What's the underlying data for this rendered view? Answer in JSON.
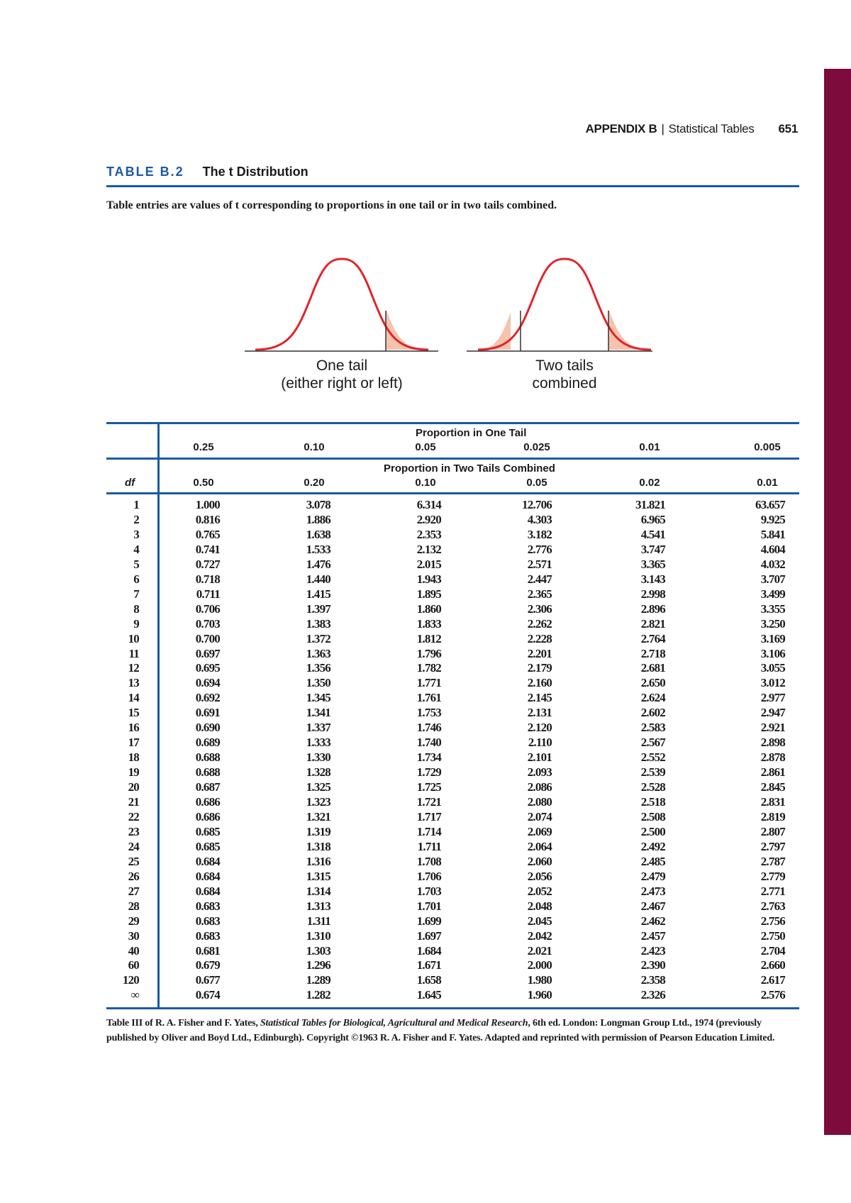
{
  "header": {
    "appendix": "APPENDIX B",
    "section": "Statistical Tables",
    "page_number": "651"
  },
  "table": {
    "number": "TABLE B.2",
    "title": "The t Distribution",
    "caption": "Table entries are values of t corresponding to proportions in one tail or in two tails combined.",
    "figure_labels": {
      "one_tail_line1": "One tail",
      "one_tail_line2": "(either right or left)",
      "two_tails_line1": "Two tails",
      "two_tails_line2": "combined"
    },
    "one_tail_heading": "Proportion in One Tail",
    "two_tail_heading": "Proportion in Two Tails Combined",
    "df_label": "df",
    "one_tail": [
      "0.25",
      "0.10",
      "0.05",
      "0.025",
      "0.01",
      "0.005"
    ],
    "two_tails": [
      "0.50",
      "0.20",
      "0.10",
      "0.05",
      "0.02",
      "0.01"
    ],
    "rows": [
      [
        "1",
        "1.000",
        "3.078",
        "6.314",
        "12.706",
        "31.821",
        "63.657"
      ],
      [
        "2",
        "0.816",
        "1.886",
        "2.920",
        "4.303",
        "6.965",
        "9.925"
      ],
      [
        "3",
        "0.765",
        "1.638",
        "2.353",
        "3.182",
        "4.541",
        "5.841"
      ],
      [
        "4",
        "0.741",
        "1.533",
        "2.132",
        "2.776",
        "3.747",
        "4.604"
      ],
      [
        "5",
        "0.727",
        "1.476",
        "2.015",
        "2.571",
        "3.365",
        "4.032"
      ],
      [
        "6",
        "0.718",
        "1.440",
        "1.943",
        "2.447",
        "3.143",
        "3.707"
      ],
      [
        "7",
        "0.711",
        "1.415",
        "1.895",
        "2.365",
        "2.998",
        "3.499"
      ],
      [
        "8",
        "0.706",
        "1.397",
        "1.860",
        "2.306",
        "2.896",
        "3.355"
      ],
      [
        "9",
        "0.703",
        "1.383",
        "1.833",
        "2.262",
        "2.821",
        "3.250"
      ],
      [
        "10",
        "0.700",
        "1.372",
        "1.812",
        "2.228",
        "2.764",
        "3.169"
      ],
      [
        "11",
        "0.697",
        "1.363",
        "1.796",
        "2.201",
        "2.718",
        "3.106"
      ],
      [
        "12",
        "0.695",
        "1.356",
        "1.782",
        "2.179",
        "2.681",
        "3.055"
      ],
      [
        "13",
        "0.694",
        "1.350",
        "1.771",
        "2.160",
        "2.650",
        "3.012"
      ],
      [
        "14",
        "0.692",
        "1.345",
        "1.761",
        "2.145",
        "2.624",
        "2.977"
      ],
      [
        "15",
        "0.691",
        "1.341",
        "1.753",
        "2.131",
        "2.602",
        "2.947"
      ],
      [
        "16",
        "0.690",
        "1.337",
        "1.746",
        "2.120",
        "2.583",
        "2.921"
      ],
      [
        "17",
        "0.689",
        "1.333",
        "1.740",
        "2.110",
        "2.567",
        "2.898"
      ],
      [
        "18",
        "0.688",
        "1.330",
        "1.734",
        "2.101",
        "2.552",
        "2.878"
      ],
      [
        "19",
        "0.688",
        "1.328",
        "1.729",
        "2.093",
        "2.539",
        "2.861"
      ],
      [
        "20",
        "0.687",
        "1.325",
        "1.725",
        "2.086",
        "2.528",
        "2.845"
      ],
      [
        "21",
        "0.686",
        "1.323",
        "1.721",
        "2.080",
        "2.518",
        "2.831"
      ],
      [
        "22",
        "0.686",
        "1.321",
        "1.717",
        "2.074",
        "2.508",
        "2.819"
      ],
      [
        "23",
        "0.685",
        "1.319",
        "1.714",
        "2.069",
        "2.500",
        "2.807"
      ],
      [
        "24",
        "0.685",
        "1.318",
        "1.711",
        "2.064",
        "2.492",
        "2.797"
      ],
      [
        "25",
        "0.684",
        "1.316",
        "1.708",
        "2.060",
        "2.485",
        "2.787"
      ],
      [
        "26",
        "0.684",
        "1.315",
        "1.706",
        "2.056",
        "2.479",
        "2.779"
      ],
      [
        "27",
        "0.684",
        "1.314",
        "1.703",
        "2.052",
        "2.473",
        "2.771"
      ],
      [
        "28",
        "0.683",
        "1.313",
        "1.701",
        "2.048",
        "2.467",
        "2.763"
      ],
      [
        "29",
        "0.683",
        "1.311",
        "1.699",
        "2.045",
        "2.462",
        "2.756"
      ],
      [
        "30",
        "0.683",
        "1.310",
        "1.697",
        "2.042",
        "2.457",
        "2.750"
      ],
      [
        "40",
        "0.681",
        "1.303",
        "1.684",
        "2.021",
        "2.423",
        "2.704"
      ],
      [
        "60",
        "0.679",
        "1.296",
        "1.671",
        "2.000",
        "2.390",
        "2.660"
      ],
      [
        "120",
        "0.677",
        "1.289",
        "1.658",
        "1.980",
        "2.358",
        "2.617"
      ],
      [
        "∞",
        "0.674",
        "1.282",
        "1.645",
        "1.960",
        "2.326",
        "2.576"
      ]
    ]
  },
  "footnote": {
    "prefix": "Table III of R. A. Fisher and F. Yates, ",
    "book_title": "Statistical Tables for Biological, Agricultural and Medical Research",
    "suffix": ", 6th ed. London: Longman Group Ltd., 1974 (previously published by Oliver and Boyd Ltd., Edinburgh). Copyright ©1963 R. A. Fisher and F. Yates. Adapted and reprinted with permission of Pearson Education Limited."
  },
  "colors": {
    "accent_blue": "#1a5aa8",
    "sidebar_magenta": "#7d0b3c",
    "curve_red": "#e0252b",
    "tail_fill": "#f6c3ad"
  }
}
